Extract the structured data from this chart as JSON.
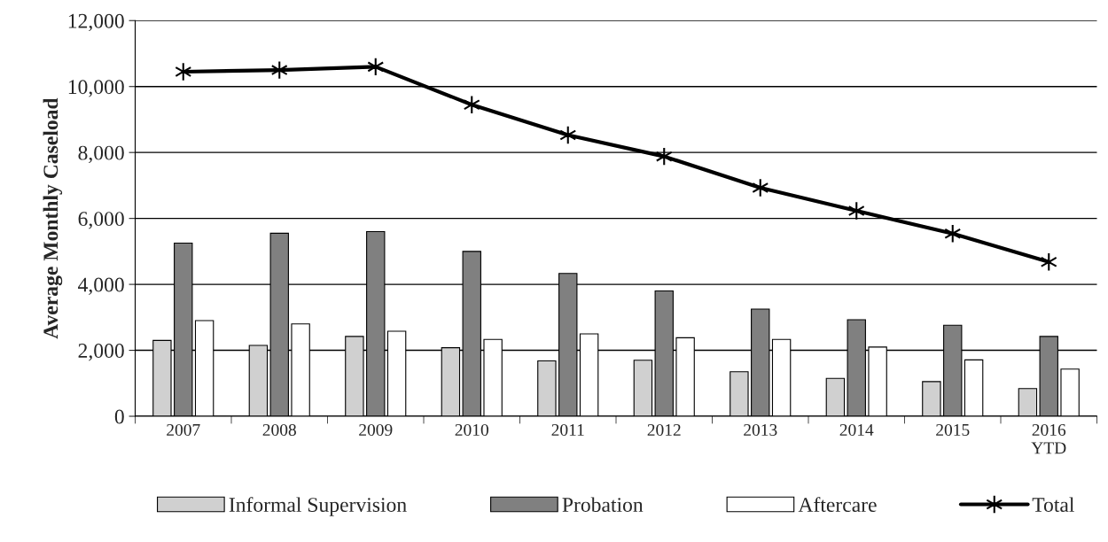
{
  "chart_data": {
    "type": "bar",
    "ylabel": "Average Monthly Caseload",
    "categories": [
      "2007",
      "2008",
      "2009",
      "2010",
      "2011",
      "2012",
      "2013",
      "2014",
      "2015",
      "2016\nYTD"
    ],
    "series": [
      {
        "name": "Informal Supervision",
        "color": "#d0d0d0",
        "values": [
          2300,
          2150,
          2420,
          2080,
          1680,
          1700,
          1350,
          1150,
          1050,
          840
        ]
      },
      {
        "name": "Probation",
        "color": "#808080",
        "values": [
          5250,
          5550,
          5600,
          5000,
          4330,
          3800,
          3250,
          2930,
          2760,
          2420
        ]
      },
      {
        "name": "Aftercare",
        "color": "#ffffff",
        "values": [
          2900,
          2800,
          2580,
          2330,
          2500,
          2380,
          2330,
          2100,
          1710,
          1430
        ]
      },
      {
        "name": "Total",
        "type": "line",
        "color": "#000000",
        "marker": "cross",
        "values": [
          10450,
          10500,
          10600,
          9450,
          8530,
          7880,
          6930,
          6230,
          5540,
          4680
        ]
      }
    ],
    "ylim": [
      0,
      12000
    ],
    "yticks": [
      {
        "value": 0,
        "label": "0"
      },
      {
        "value": 2000,
        "label": "2,000"
      },
      {
        "value": 4000,
        "label": "4,000"
      },
      {
        "value": 6000,
        "label": "6,000"
      },
      {
        "value": 8000,
        "label": "8,000"
      },
      {
        "value": 10000,
        "label": "10,000"
      },
      {
        "value": 12000,
        "label": "12,000"
      }
    ],
    "grid": "y",
    "legend": "bottom"
  }
}
